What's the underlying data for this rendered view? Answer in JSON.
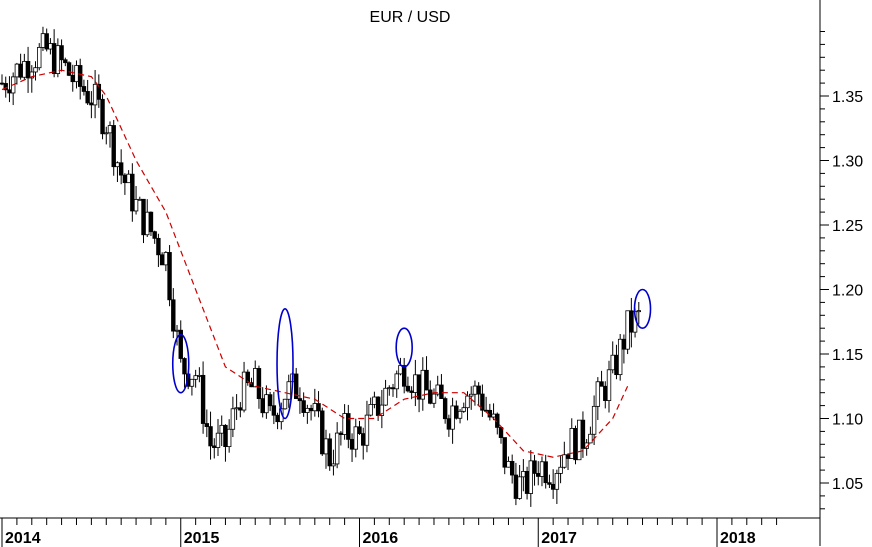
{
  "chart_data": {
    "type": "candlestick",
    "title": "EUR / USD",
    "xlabel": "",
    "ylabel": "",
    "x_range": [
      "2014-01",
      "2018-05"
    ],
    "ylim": [
      1.02,
      1.4
    ],
    "y_ticks": [
      1.05,
      1.1,
      1.15,
      1.2,
      1.25,
      1.3,
      1.35
    ],
    "y_tick_labels": [
      "1.05",
      "1.10",
      "1.15",
      "1.20",
      "1.25",
      "1.30",
      "1.35"
    ],
    "year_labels": [
      {
        "year": "2014",
        "date": "2014-01"
      },
      {
        "year": "2015",
        "date": "2015-01"
      },
      {
        "year": "2016",
        "date": "2016-01"
      },
      {
        "year": "2017",
        "date": "2017-01"
      },
      {
        "year": "2018",
        "date": "2018-01"
      }
    ],
    "grid": false,
    "price_series": {
      "name": "",
      "color": "#000000",
      "points": [
        [
          "2014-01",
          1.36
        ],
        [
          "2014-02",
          1.37
        ],
        [
          "2014-03",
          1.38
        ],
        [
          "2014-04",
          1.385
        ],
        [
          "2014-05",
          1.375
        ],
        [
          "2014-06",
          1.36
        ],
        [
          "2014-07",
          1.35
        ],
        [
          "2014-08",
          1.33
        ],
        [
          "2014-09",
          1.29
        ],
        [
          "2014-10",
          1.265
        ],
        [
          "2014-11",
          1.245
        ],
        [
          "2014-12",
          1.225
        ],
        [
          "2015-01",
          1.14
        ],
        [
          "2015-02",
          1.135
        ],
        [
          "2015-03",
          1.08
        ],
        [
          "2015-04",
          1.08
        ],
        [
          "2015-05",
          1.12
        ],
        [
          "2015-06",
          1.125
        ],
        [
          "2015-07",
          1.1
        ],
        [
          "2015-08",
          1.12
        ],
        [
          "2015-09",
          1.125
        ],
        [
          "2015-10",
          1.1
        ],
        [
          "2015-11",
          1.07
        ],
        [
          "2015-12",
          1.09
        ],
        [
          "2016-01",
          1.085
        ],
        [
          "2016-02",
          1.105
        ],
        [
          "2016-03",
          1.125
        ],
        [
          "2016-04",
          1.14
        ],
        [
          "2016-05",
          1.125
        ],
        [
          "2016-06",
          1.115
        ],
        [
          "2016-07",
          1.105
        ],
        [
          "2016-08",
          1.12
        ],
        [
          "2016-09",
          1.12
        ],
        [
          "2016-10",
          1.095
        ],
        [
          "2016-11",
          1.06
        ],
        [
          "2016-12",
          1.045
        ],
        [
          "2017-01",
          1.065
        ],
        [
          "2017-02",
          1.06
        ],
        [
          "2017-03",
          1.08
        ],
        [
          "2017-04",
          1.085
        ],
        [
          "2017-05",
          1.115
        ],
        [
          "2017-06",
          1.135
        ],
        [
          "2017-07",
          1.17
        ],
        [
          "2017-08",
          1.18
        ]
      ]
    },
    "moving_average": {
      "name": "",
      "color": "#cc0000",
      "style": "dashed",
      "points": [
        [
          "2014-01",
          1.355
        ],
        [
          "2014-03",
          1.365
        ],
        [
          "2014-05",
          1.37
        ],
        [
          "2014-07",
          1.365
        ],
        [
          "2014-08",
          1.35
        ],
        [
          "2014-10",
          1.3
        ],
        [
          "2014-12",
          1.26
        ],
        [
          "2015-02",
          1.2
        ],
        [
          "2015-04",
          1.14
        ],
        [
          "2015-06",
          1.125
        ],
        [
          "2015-08",
          1.12
        ],
        [
          "2015-10",
          1.115
        ],
        [
          "2015-12",
          1.1
        ],
        [
          "2016-02",
          1.1
        ],
        [
          "2016-04",
          1.115
        ],
        [
          "2016-06",
          1.12
        ],
        [
          "2016-08",
          1.12
        ],
        [
          "2016-10",
          1.1
        ],
        [
          "2016-12",
          1.075
        ],
        [
          "2017-02",
          1.07
        ],
        [
          "2017-04",
          1.075
        ],
        [
          "2017-06",
          1.1
        ],
        [
          "2017-07",
          1.125
        ]
      ]
    },
    "annotations": [
      {
        "type": "ellipse",
        "color": "#0000cc",
        "date": "2015-01",
        "low": 1.12,
        "high": 1.165
      },
      {
        "type": "ellipse",
        "color": "#0000cc",
        "date": "2015-08",
        "low": 1.1,
        "high": 1.185
      },
      {
        "type": "ellipse",
        "color": "#0000cc",
        "date": "2016-04",
        "low": 1.14,
        "high": 1.17
      },
      {
        "type": "ellipse",
        "color": "#0000cc",
        "date": "2017-08",
        "low": 1.17,
        "high": 1.2
      }
    ]
  }
}
